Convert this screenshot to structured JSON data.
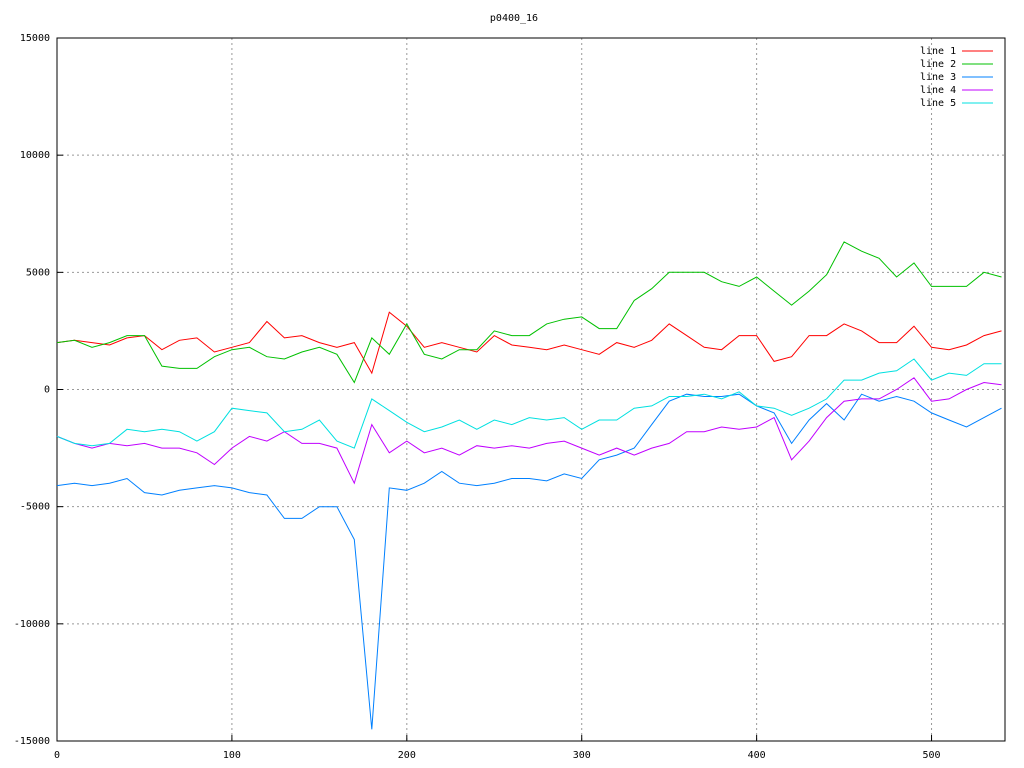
{
  "chart_data": {
    "type": "line",
    "title": "p0400_16",
    "x": [
      0,
      10,
      20,
      30,
      40,
      50,
      60,
      70,
      80,
      90,
      100,
      110,
      120,
      130,
      140,
      150,
      160,
      170,
      180,
      190,
      200,
      210,
      220,
      230,
      240,
      250,
      260,
      270,
      280,
      290,
      300,
      310,
      320,
      330,
      340,
      350,
      360,
      370,
      380,
      390,
      400,
      410,
      420,
      430,
      440,
      450,
      460,
      470,
      480,
      490,
      500,
      510,
      520,
      530,
      540
    ],
    "series": [
      {
        "name": "line 1",
        "color": "#ff0000",
        "values": [
          2000,
          2100,
          2000,
          1900,
          2200,
          2300,
          1700,
          2100,
          2200,
          1600,
          1800,
          2000,
          2900,
          2200,
          2300,
          2000,
          1800,
          2000,
          700,
          3300,
          2700,
          1800,
          2000,
          1800,
          1600,
          2300,
          1900,
          1800,
          1700,
          1900,
          1700,
          1500,
          2000,
          1800,
          2100,
          2800,
          2300,
          1800,
          1700,
          2300,
          2300,
          1200,
          1400,
          2300,
          2300,
          2800,
          2500,
          2000,
          2000,
          2700,
          1800,
          1700,
          1900,
          2300,
          2500
        ]
      },
      {
        "name": "line 2",
        "color": "#00c000",
        "values": [
          2000,
          2100,
          1800,
          2000,
          2300,
          2300,
          1000,
          900,
          900,
          1400,
          1700,
          1800,
          1400,
          1300,
          1600,
          1800,
          1500,
          300,
          2200,
          1500,
          2800,
          1500,
          1300,
          1700,
          1700,
          2500,
          2300,
          2300,
          2800,
          3000,
          3100,
          2600,
          2600,
          3800,
          4300,
          5000,
          5000,
          5000,
          4600,
          4400,
          4800,
          4200,
          3600,
          4200,
          4900,
          6300,
          5900,
          5600,
          4800,
          5400,
          4400,
          4400,
          4400,
          5000,
          4800
        ]
      },
      {
        "name": "line 3",
        "color": "#0080ff",
        "values": [
          -4100,
          -4000,
          -4100,
          -4000,
          -3800,
          -4400,
          -4500,
          -4300,
          -4200,
          -4100,
          -4200,
          -4400,
          -4500,
          -5500,
          -5500,
          -5000,
          -5000,
          -6400,
          -14500,
          -4200,
          -4300,
          -4000,
          -3500,
          -4000,
          -4100,
          -4000,
          -3800,
          -3800,
          -3900,
          -3600,
          -3800,
          -3000,
          -2800,
          -2500,
          -1500,
          -500,
          -200,
          -300,
          -300,
          -200,
          -700,
          -1000,
          -2300,
          -1300,
          -600,
          -1300,
          -200,
          -500,
          -300,
          -500,
          -1000,
          -1300,
          -1600,
          -1200,
          -800
        ]
      },
      {
        "name": "line 4",
        "color": "#c000ff",
        "values": [
          -2000,
          -2300,
          -2500,
          -2300,
          -2400,
          -2300,
          -2500,
          -2500,
          -2700,
          -3200,
          -2500,
          -2000,
          -2200,
          -1800,
          -2300,
          -2300,
          -2500,
          -4000,
          -1500,
          -2700,
          -2200,
          -2700,
          -2500,
          -2800,
          -2400,
          -2500,
          -2400,
          -2500,
          -2300,
          -2200,
          -2500,
          -2800,
          -2500,
          -2800,
          -2500,
          -2300,
          -1800,
          -1800,
          -1600,
          -1700,
          -1600,
          -1200,
          -3000,
          -2200,
          -1200,
          -500,
          -400,
          -400,
          0,
          500,
          -500,
          -400,
          0,
          300,
          200
        ]
      },
      {
        "name": "line 5",
        "color": "#00e0e0",
        "values": [
          -2000,
          -2300,
          -2400,
          -2300,
          -1700,
          -1800,
          -1700,
          -1800,
          -2200,
          -1800,
          -800,
          -900,
          -1000,
          -1800,
          -1700,
          -1300,
          -2200,
          -2500,
          -400,
          -900,
          -1400,
          -1800,
          -1600,
          -1300,
          -1700,
          -1300,
          -1500,
          -1200,
          -1300,
          -1200,
          -1700,
          -1300,
          -1300,
          -800,
          -700,
          -300,
          -300,
          -200,
          -400,
          -100,
          -700,
          -800,
          -1100,
          -800,
          -400,
          400,
          400,
          700,
          800,
          1300,
          400,
          700,
          600,
          1100,
          1100
        ]
      }
    ],
    "xlim": [
      0,
      542
    ],
    "xticks": [
      0,
      100,
      200,
      300,
      400,
      500
    ],
    "ylim": [
      -15000,
      15000
    ],
    "yticks": [
      -15000,
      -10000,
      -5000,
      0,
      5000,
      10000,
      15000
    ],
    "grid": true,
    "legend": "top right"
  }
}
